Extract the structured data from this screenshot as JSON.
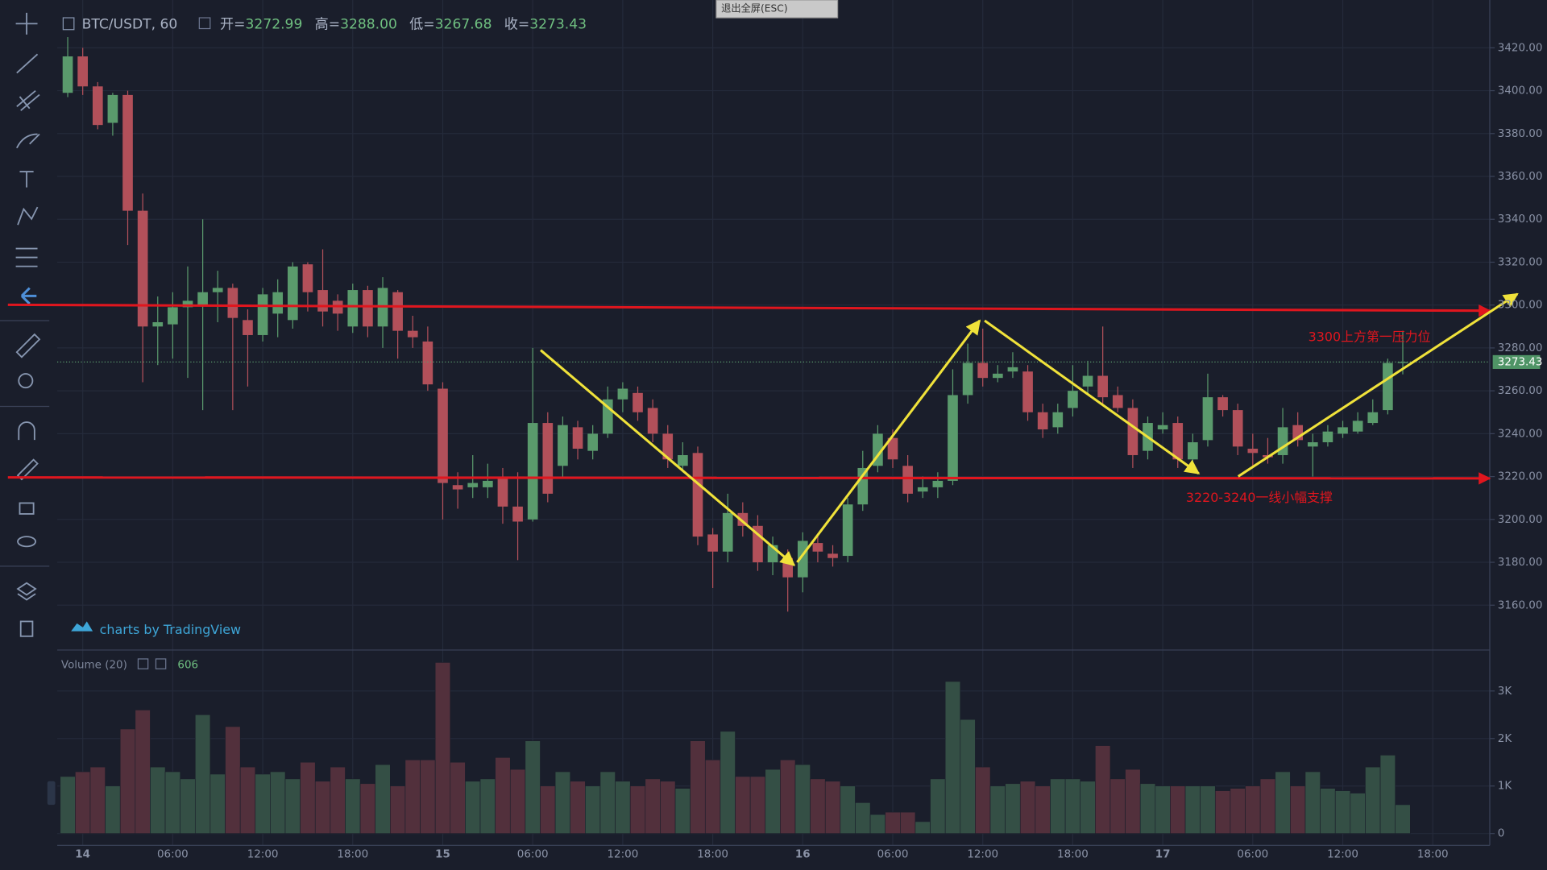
{
  "chart_data": {
    "type": "candlestick",
    "symbol": "BTC/USDT, 60",
    "ohlc_legend": [
      {
        "label": "开=",
        "value": "3272.99"
      },
      {
        "label": "高=",
        "value": "3288.00"
      },
      {
        "label": "低=",
        "value": "3267.68"
      },
      {
        "label": "收=",
        "value": "3273.43"
      }
    ],
    "fullscreen_button": "退出全屏(ESC)",
    "watermark": "charts by TradingView",
    "annotations": [
      "3300上方第一压力位",
      "3220-3240一线小幅支撑"
    ],
    "up_color": "#5a9a6c",
    "down_color": "#b2505a",
    "x": [
      -1,
      0,
      1,
      2,
      3,
      4,
      5,
      6,
      7,
      8,
      9,
      10,
      11,
      12,
      13,
      14,
      15,
      16,
      17,
      18,
      19,
      20,
      21,
      22,
      23,
      24,
      25,
      26,
      27,
      28,
      29,
      30,
      31,
      32,
      33,
      34,
      35,
      36,
      37,
      38,
      39,
      40,
      41,
      42,
      43,
      44,
      45,
      46,
      47,
      48,
      49,
      50,
      51,
      52,
      53,
      54,
      55,
      56,
      57,
      58,
      59,
      60,
      61,
      62,
      63,
      64,
      65,
      66,
      67,
      68,
      69,
      70,
      71,
      72,
      73,
      74,
      75,
      76,
      77,
      78,
      79,
      80,
      81,
      82,
      83,
      84,
      85,
      86,
      87,
      88
    ],
    "open": [
      3399,
      3416,
      3402,
      3385,
      3398,
      3344,
      3290,
      3291,
      3299,
      3300,
      3306,
      3308,
      3293,
      3286,
      3296,
      3293,
      3319,
      3307,
      3302,
      3290,
      3307,
      3290,
      3306,
      3288,
      3283,
      3261,
      3216,
      3215,
      3215,
      3220,
      3206,
      3200,
      3245,
      3225,
      3243,
      3232,
      3240,
      3256,
      3259,
      3252,
      3240,
      3225,
      3231,
      3193,
      3185,
      3203,
      3197,
      3180,
      3182,
      3173,
      3189,
      3184,
      3183,
      3207,
      3225,
      3238,
      3225,
      3213,
      3215,
      3218,
      3258,
      3273,
      3266,
      3269,
      3269,
      3250,
      3243,
      3252,
      3262,
      3267,
      3258,
      3252,
      3232,
      3242,
      3245,
      3228,
      3237,
      3257,
      3251,
      3233,
      3230,
      3230,
      3244,
      3234,
      3236,
      3240,
      3241,
      3245,
      3251,
      3272.99
    ],
    "high": [
      3425,
      3420,
      3404,
      3399,
      3400,
      3352,
      3304,
      3306,
      3318,
      3340,
      3316,
      3310,
      3298,
      3308,
      3312,
      3320,
      3320,
      3326,
      3305,
      3310,
      3309,
      3313,
      3307,
      3295,
      3290,
      3264,
      3222,
      3230,
      3226,
      3224,
      3222,
      3280,
      3250,
      3248,
      3246,
      3244,
      3262,
      3264,
      3262,
      3256,
      3244,
      3236,
      3234,
      3196,
      3212,
      3208,
      3202,
      3192,
      3186,
      3194,
      3192,
      3188,
      3210,
      3232,
      3244,
      3242,
      3230,
      3220,
      3222,
      3270,
      3282,
      3289,
      3272,
      3278,
      3272,
      3254,
      3254,
      3272,
      3274,
      3290,
      3262,
      3256,
      3248,
      3250,
      3248,
      3240,
      3268,
      3258,
      3254,
      3240,
      3238,
      3252,
      3250,
      3240,
      3244,
      3246,
      3250,
      3256,
      3275,
      3288
    ],
    "low": [
      3397,
      3398,
      3382,
      3379,
      3328,
      3264,
      3272,
      3275,
      3266,
      3251,
      3292,
      3251,
      3262,
      3283,
      3285,
      3289,
      3297,
      3290,
      3288,
      3287,
      3285,
      3280,
      3275,
      3280,
      3260,
      3200,
      3205,
      3210,
      3210,
      3198,
      3181,
      3199,
      3208,
      3220,
      3228,
      3228,
      3238,
      3250,
      3246,
      3236,
      3224,
      3222,
      3188,
      3168,
      3180,
      3192,
      3176,
      3174,
      3157,
      3166,
      3180,
      3178,
      3180,
      3204,
      3222,
      3224,
      3208,
      3210,
      3210,
      3216,
      3254,
      3262,
      3264,
      3266,
      3246,
      3238,
      3240,
      3248,
      3258,
      3254,
      3250,
      3224,
      3228,
      3240,
      3224,
      3226,
      3234,
      3248,
      3230,
      3224,
      3226,
      3226,
      3234,
      3220,
      3234,
      3238,
      3240,
      3244,
      3249,
      3267.68
    ],
    "close": [
      3416,
      3402,
      3384,
      3398,
      3344,
      3290,
      3292,
      3299,
      3302,
      3306,
      3308,
      3294,
      3286,
      3305,
      3306,
      3318,
      3306,
      3297,
      3296,
      3307,
      3290,
      3308,
      3288,
      3285,
      3263,
      3217,
      3214,
      3217,
      3218,
      3206,
      3199,
      3245,
      3212,
      3244,
      3233,
      3240,
      3256,
      3261,
      3250,
      3240,
      3228,
      3230,
      3192,
      3185,
      3203,
      3197,
      3180,
      3188,
      3173,
      3190,
      3185,
      3182,
      3207,
      3224,
      3240,
      3228,
      3212,
      3215,
      3218,
      3258,
      3273,
      3266,
      3268,
      3271,
      3250,
      3242,
      3250,
      3260,
      3267,
      3257,
      3252,
      3230,
      3245,
      3244,
      3228,
      3236,
      3257,
      3251,
      3234,
      3231,
      3229,
      3243,
      3237,
      3236,
      3241,
      3243,
      3246,
      3250,
      3272.99,
      3273.43
    ],
    "xlim": [
      -1.7,
      93.8
    ],
    "xticks": [
      {
        "value": 0,
        "label": "14"
      },
      {
        "value": 6,
        "label": "06:00"
      },
      {
        "value": 12,
        "label": "12:00"
      },
      {
        "value": 18,
        "label": "18:00"
      },
      {
        "value": 24,
        "label": "15"
      },
      {
        "value": 30,
        "label": "06:00"
      },
      {
        "value": 36,
        "label": "12:00"
      },
      {
        "value": 42,
        "label": "18:00"
      },
      {
        "value": 48,
        "label": "16"
      },
      {
        "value": 54,
        "label": "06:00"
      },
      {
        "value": 60,
        "label": "12:00"
      },
      {
        "value": 66,
        "label": "18:00"
      },
      {
        "value": 72,
        "label": "17"
      },
      {
        "value": 78,
        "label": "06:00"
      },
      {
        "value": 84,
        "label": "12:00"
      },
      {
        "value": 90,
        "label": "18:00"
      }
    ],
    "ylim": [
      3140,
      3440
    ],
    "yticks": [
      {
        "value": 3160,
        "label": "3160.00"
      },
      {
        "value": 3180,
        "label": "3180.00"
      },
      {
        "value": 3200,
        "label": "3200.00"
      },
      {
        "value": 3220,
        "label": "3220.00"
      },
      {
        "value": 3240,
        "label": "3240.00"
      },
      {
        "value": 3260,
        "label": "3260.00"
      },
      {
        "value": 3280,
        "label": "3280.00"
      },
      {
        "value": 3300,
        "label": "3300.00"
      },
      {
        "value": 3320,
        "label": "3320.00"
      },
      {
        "value": 3340,
        "label": "3340.00"
      },
      {
        "value": 3360,
        "label": "3360.00"
      },
      {
        "value": 3380,
        "label": "3380.00"
      },
      {
        "value": 3400,
        "label": "3400.00"
      },
      {
        "value": 3420,
        "label": "3420.00"
      }
    ],
    "grid": true,
    "volume": {
      "title": "Volume (20)",
      "up_color": "#344f45",
      "down_color": "#52303c",
      "values": [
        1200,
        1300,
        1400,
        1000,
        2200,
        2600,
        1400,
        1300,
        1150,
        2500,
        1250,
        2250,
        1400,
        1250,
        1300,
        1150,
        1500,
        1100,
        1400,
        1150,
        1050,
        1450,
        1000,
        1550,
        1550,
        3600,
        1500,
        1100,
        1150,
        1600,
        1350,
        1950,
        1000,
        1300,
        1100,
        1000,
        1300,
        1100,
        1000,
        1150,
        1100,
        950,
        1950,
        1550,
        2150,
        1200,
        1200,
        1350,
        1550,
        1450,
        1150,
        1100,
        1000,
        650,
        400,
        450,
        450,
        250,
        1150,
        3200,
        2400,
        1400,
        1000,
        1050,
        1100,
        1000,
        1150,
        1150,
        1100,
        1850,
        1150,
        1350,
        1050,
        1000,
        1000,
        1000,
        1000,
        900,
        950,
        1000,
        1150,
        1300,
        1000,
        1300,
        950,
        900,
        850,
        1400,
        1650,
        606
      ],
      "ylim": [
        0,
        3800
      ],
      "yticks": [
        {
          "value": 0,
          "label": "0"
        },
        {
          "value": 1000,
          "label": "1K"
        },
        {
          "value": 2000,
          "label": "2K"
        },
        {
          "value": 3000,
          "label": "3K"
        }
      ]
    }
  }
}
